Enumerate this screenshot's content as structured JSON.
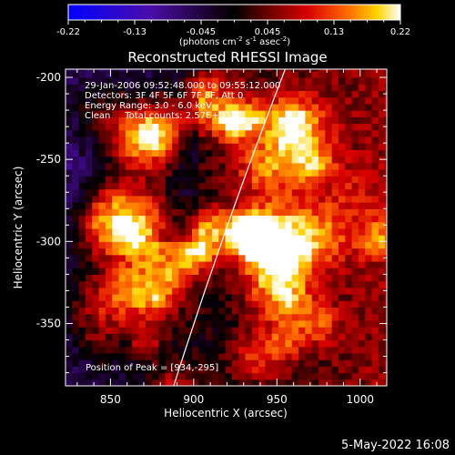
{
  "colorbar": {
    "tick_labels": [
      "-0.22",
      "-0.13",
      "-0.045",
      "0.045",
      "0.13",
      "0.22"
    ],
    "unit_label_parts": [
      "(photons cm",
      "-2",
      " s",
      "-1",
      " asec",
      "-2",
      ")"
    ]
  },
  "chart_data": {
    "type": "heatmap",
    "title": "Reconstructed RHESSI Image",
    "xlabel": "Heliocentric X (arcsec)",
    "ylabel": "Heliocentric Y (arcsec)",
    "xlim": [
      823,
      1016
    ],
    "ylim": [
      -388,
      -195
    ],
    "x_ticks": [
      850,
      900,
      950,
      1000
    ],
    "y_ticks": [
      -200,
      -250,
      -300,
      -350
    ],
    "colorbar_range": [
      -0.22,
      0.22
    ],
    "colormap": "purple-black-red-yellow-white",
    "peak": {
      "x": 934,
      "y": -295
    },
    "limb_curve": {
      "x_top": 955,
      "y_top": -195,
      "x_bottom": 888,
      "y_bottom": -388
    },
    "annotations": [
      "29-Jan-2006 09:52:48.000 to 09:55:12.000",
      "Detectors: 3F 4F 5F 6F 7F 8F, Att 0",
      "Energy Range: 3.0 - 6.0 keV",
      "Clean     Total counts: 2.57E+03"
    ],
    "peak_label": "Position of Peak = [934,-295]"
  },
  "footer": {
    "date": "5-May-2022 16:08"
  },
  "colors": {
    "background": "#000000",
    "text": "#ffffff",
    "axes": "#ffffff"
  }
}
